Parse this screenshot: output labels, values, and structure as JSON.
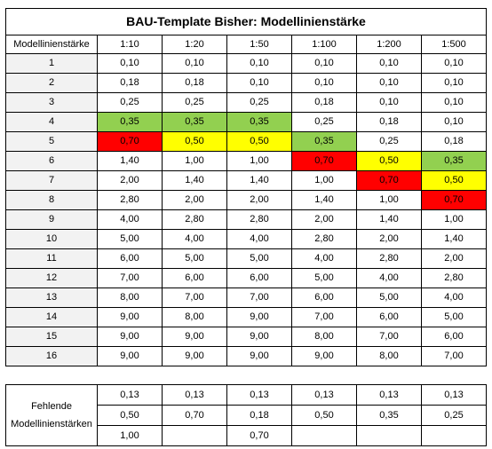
{
  "title": "BAU-Template Bisher: Modellinienstärke",
  "corner_label": "Modellinienstärke",
  "scales": [
    "1:10",
    "1:20",
    "1:50",
    "1:100",
    "1:200",
    "1:500"
  ],
  "colors": {
    "green": "#92d050",
    "yellow": "#ffff00",
    "red": "#ff0000"
  },
  "rows": [
    {
      "label": "1",
      "values": [
        "0,10",
        "0,10",
        "0,10",
        "0,10",
        "0,10",
        "0,10"
      ],
      "highlight": [
        "",
        "",
        "",
        "",
        "",
        ""
      ]
    },
    {
      "label": "2",
      "values": [
        "0,18",
        "0,18",
        "0,10",
        "0,10",
        "0,10",
        "0,10"
      ],
      "highlight": [
        "",
        "",
        "",
        "",
        "",
        ""
      ]
    },
    {
      "label": "3",
      "values": [
        "0,25",
        "0,25",
        "0,25",
        "0,18",
        "0,10",
        "0,10"
      ],
      "highlight": [
        "",
        "",
        "",
        "",
        "",
        ""
      ]
    },
    {
      "label": "4",
      "values": [
        "0,35",
        "0,35",
        "0,35",
        "0,25",
        "0,18",
        "0,10"
      ],
      "highlight": [
        "green",
        "green",
        "green",
        "",
        "",
        ""
      ]
    },
    {
      "label": "5",
      "values": [
        "0,70",
        "0,50",
        "0,50",
        "0,35",
        "0,25",
        "0,18"
      ],
      "highlight": [
        "red",
        "yellow",
        "yellow",
        "green",
        "",
        ""
      ]
    },
    {
      "label": "6",
      "values": [
        "1,40",
        "1,00",
        "1,00",
        "0,70",
        "0,50",
        "0,35"
      ],
      "highlight": [
        "",
        "",
        "",
        "red",
        "yellow",
        "green"
      ]
    },
    {
      "label": "7",
      "values": [
        "2,00",
        "1,40",
        "1,40",
        "1,00",
        "0,70",
        "0,50"
      ],
      "highlight": [
        "",
        "",
        "",
        "",
        "red",
        "yellow"
      ]
    },
    {
      "label": "8",
      "values": [
        "2,80",
        "2,00",
        "2,00",
        "1,40",
        "1,00",
        "0,70"
      ],
      "highlight": [
        "",
        "",
        "",
        "",
        "",
        "red"
      ]
    },
    {
      "label": "9",
      "values": [
        "4,00",
        "2,80",
        "2,80",
        "2,00",
        "1,40",
        "1,00"
      ],
      "highlight": [
        "",
        "",
        "",
        "",
        "",
        ""
      ]
    },
    {
      "label": "10",
      "values": [
        "5,00",
        "4,00",
        "4,00",
        "2,80",
        "2,00",
        "1,40"
      ],
      "highlight": [
        "",
        "",
        "",
        "",
        "",
        ""
      ]
    },
    {
      "label": "11",
      "values": [
        "6,00",
        "5,00",
        "5,00",
        "4,00",
        "2,80",
        "2,00"
      ],
      "highlight": [
        "",
        "",
        "",
        "",
        "",
        ""
      ]
    },
    {
      "label": "12",
      "values": [
        "7,00",
        "6,00",
        "6,00",
        "5,00",
        "4,00",
        "2,80"
      ],
      "highlight": [
        "",
        "",
        "",
        "",
        "",
        ""
      ]
    },
    {
      "label": "13",
      "values": [
        "8,00",
        "7,00",
        "7,00",
        "6,00",
        "5,00",
        "4,00"
      ],
      "highlight": [
        "",
        "",
        "",
        "",
        "",
        ""
      ]
    },
    {
      "label": "14",
      "values": [
        "9,00",
        "8,00",
        "9,00",
        "7,00",
        "6,00",
        "5,00"
      ],
      "highlight": [
        "",
        "",
        "",
        "",
        "",
        ""
      ]
    },
    {
      "label": "15",
      "values": [
        "9,00",
        "9,00",
        "9,00",
        "8,00",
        "7,00",
        "6,00"
      ],
      "highlight": [
        "",
        "",
        "",
        "",
        "",
        ""
      ]
    },
    {
      "label": "16",
      "values": [
        "9,00",
        "9,00",
        "9,00",
        "9,00",
        "8,00",
        "7,00"
      ],
      "highlight": [
        "",
        "",
        "",
        "",
        "",
        ""
      ]
    }
  ],
  "missing": {
    "label": "Fehlende Modellinienstärken",
    "rows": [
      [
        "0,13",
        "0,13",
        "0,13",
        "0,13",
        "0,13",
        "0,13"
      ],
      [
        "0,50",
        "0,70",
        "0,18",
        "0,50",
        "0,35",
        "0,25"
      ],
      [
        "1,00",
        "",
        "0,70",
        "",
        "",
        ""
      ]
    ]
  }
}
